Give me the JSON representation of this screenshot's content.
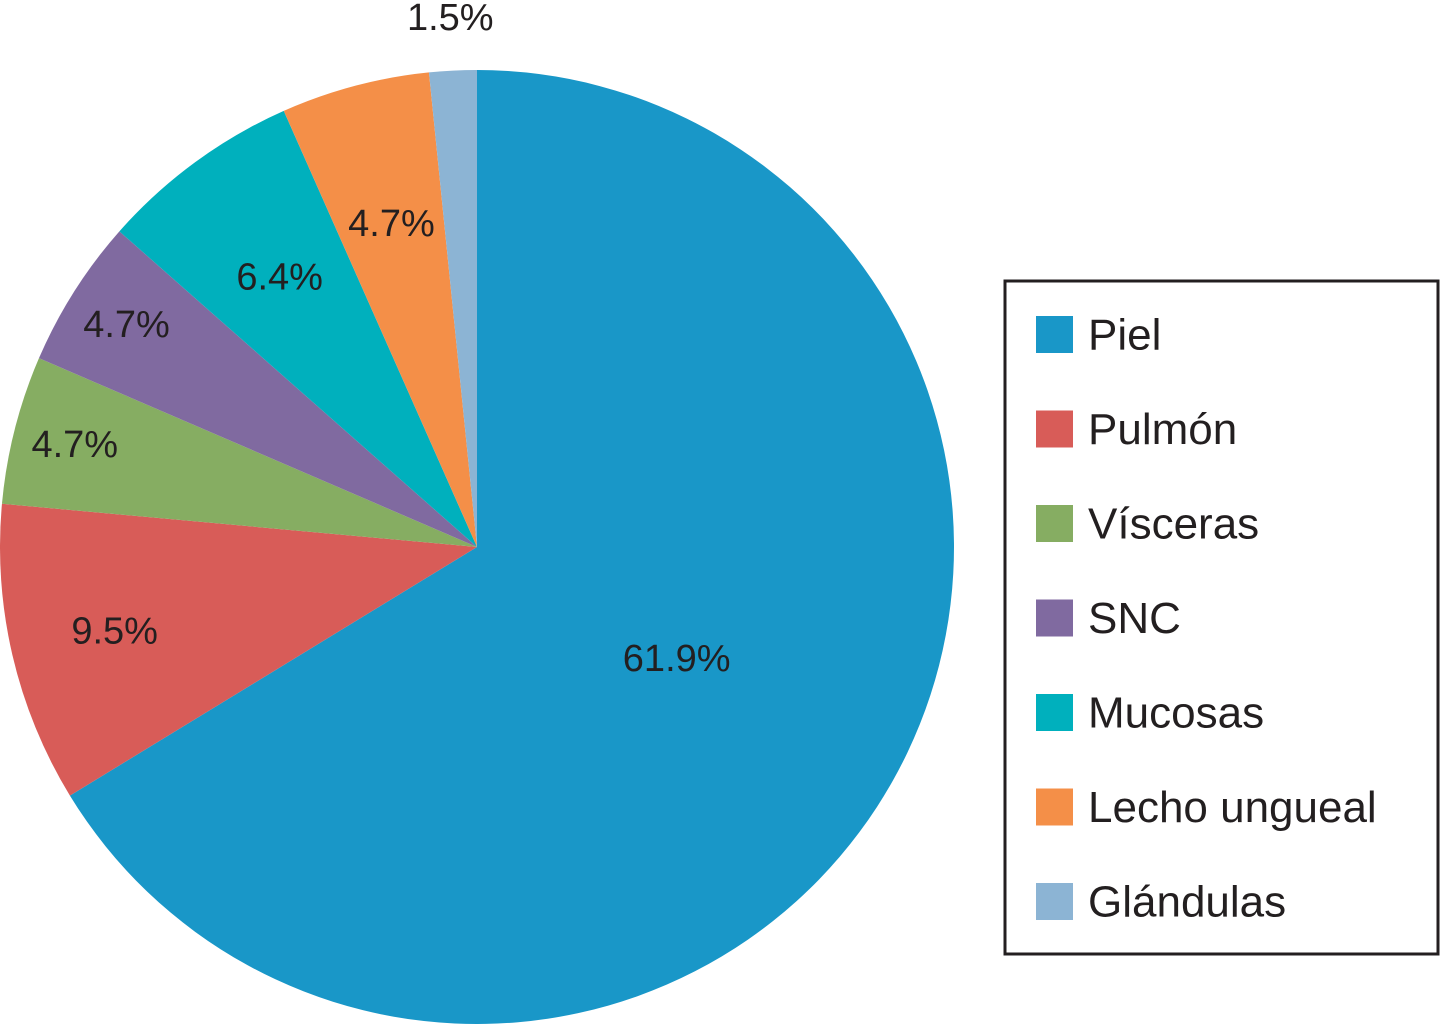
{
  "chart_data": {
    "type": "pie",
    "slices": [
      {
        "label": "Piel",
        "value": 61.9,
        "value_label": "61.9%",
        "color": "#1997c8"
      },
      {
        "label": "Pulmón",
        "value": 9.5,
        "value_label": "9.5%",
        "color": "#d85c58"
      },
      {
        "label": "Vísceras",
        "value": 4.7,
        "value_label": "4.7%",
        "color": "#86ad62"
      },
      {
        "label": "SNC",
        "value": 4.7,
        "value_label": "4.7%",
        "color": "#806aa0"
      },
      {
        "label": "Mucosas",
        "value": 6.4,
        "value_label": "6.4%",
        "color": "#00b0bd"
      },
      {
        "label": "Lecho ungueal",
        "value": 4.7,
        "value_label": "4.7%",
        "color": "#f48f48"
      },
      {
        "label": "Glándulas",
        "value": 1.5,
        "value_label": "1.5%",
        "color": "#8cb4d4"
      }
    ],
    "start_angle": "12 o'clock",
    "direction": "clockwise",
    "legend_position": "right",
    "legend": [
      "Piel",
      "Pulmón",
      "Vísceras",
      "SNC",
      "Mucosas",
      "Lecho ungueal",
      "Glándulas"
    ]
  }
}
